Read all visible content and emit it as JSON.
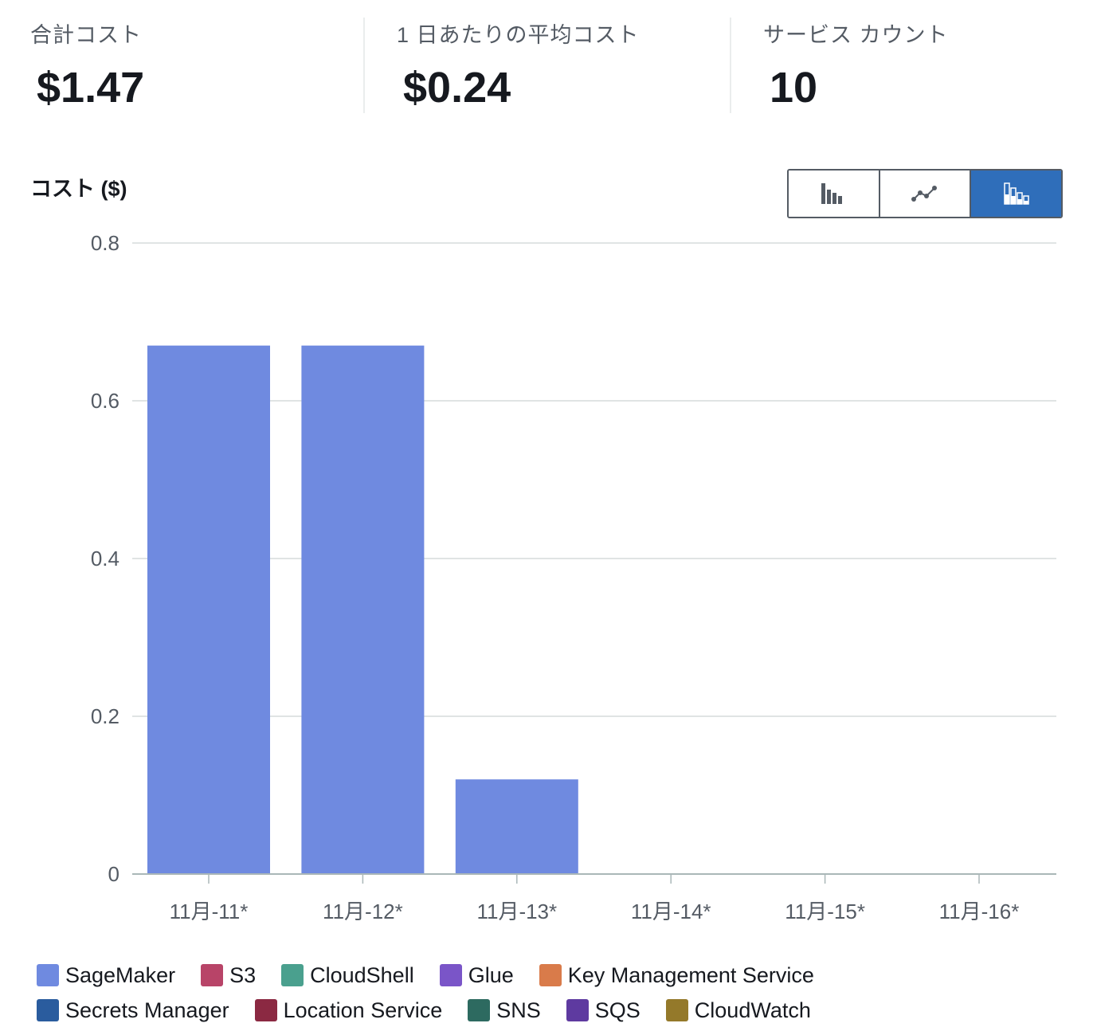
{
  "summary": {
    "total_cost_label": "合計コスト",
    "total_cost_value": "$1.47",
    "avg_cost_label": "1 日あたりの平均コスト",
    "avg_cost_value": "$0.24",
    "service_count_label": "サービス カウント",
    "service_count_value": "10"
  },
  "chart_header": {
    "title": "コスト ($)"
  },
  "chart_type_toggle": {
    "options": [
      "bar-chart-icon",
      "line-chart-icon",
      "stacked-bar-chart-icon"
    ],
    "active": "stacked-bar-chart-icon"
  },
  "chart_data": {
    "type": "bar",
    "stacked": true,
    "title": "コスト ($)",
    "categories": [
      "11月-11*",
      "11月-12*",
      "11月-13*",
      "11月-14*",
      "11月-15*",
      "11月-16*"
    ],
    "ylim": [
      0,
      0.8
    ],
    "yticks": [
      "0",
      "0.2",
      "0.4",
      "0.6",
      "0.8"
    ],
    "series": [
      {
        "name": "SageMaker",
        "color": "#6f8ae0",
        "values": [
          0.67,
          0.67,
          0.12,
          0,
          0,
          0
        ]
      },
      {
        "name": "S3",
        "color": "#b84468",
        "values": [
          0,
          0,
          0,
          0,
          0,
          0
        ]
      },
      {
        "name": "CloudShell",
        "color": "#4aa08e",
        "values": [
          0,
          0,
          0,
          0,
          0,
          0
        ]
      },
      {
        "name": "Glue",
        "color": "#7a55c8",
        "values": [
          0,
          0,
          0,
          0,
          0,
          0
        ]
      },
      {
        "name": "Key Management Service",
        "color": "#d97b4a",
        "values": [
          0,
          0,
          0,
          0,
          0,
          0
        ]
      },
      {
        "name": "Secrets Manager",
        "color": "#2a5c9e",
        "values": [
          0,
          0,
          0,
          0,
          0,
          0
        ]
      },
      {
        "name": "Location Service",
        "color": "#8b2942",
        "values": [
          0,
          0,
          0,
          0,
          0,
          0
        ]
      },
      {
        "name": "SNS",
        "color": "#2d6a60",
        "values": [
          0,
          0,
          0,
          0,
          0,
          0
        ]
      },
      {
        "name": "SQS",
        "color": "#5e3aa0",
        "values": [
          0,
          0,
          0,
          0,
          0,
          0
        ]
      },
      {
        "name": "CloudWatch",
        "color": "#94792a",
        "values": [
          0,
          0,
          0,
          0,
          0,
          0
        ]
      }
    ],
    "legend_position": "bottom"
  },
  "legend": {
    "rows": [
      [
        "SageMaker",
        "S3",
        "CloudShell",
        "Glue",
        "Key Management Service"
      ],
      [
        "Secrets Manager",
        "Location Service",
        "SNS",
        "SQS",
        "CloudWatch"
      ]
    ]
  }
}
